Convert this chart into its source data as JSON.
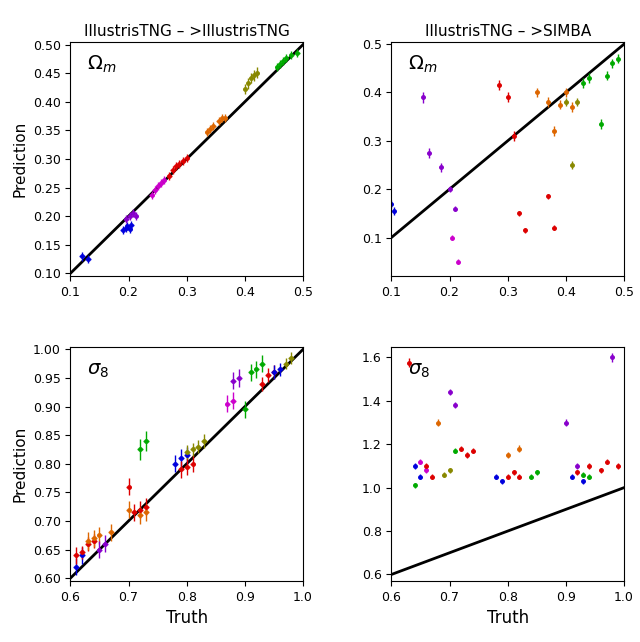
{
  "title_left": "IllustrisTNG – >IllustrisTNG",
  "title_right": "IllustrisTNG – >SIMBA",
  "xlabel": "Truth",
  "ylabel": "Prediction",
  "panel_tl": {
    "label_base": "\\Omega",
    "label_sub": "m",
    "xlim": [
      0.1,
      0.5
    ],
    "ylim": [
      0.095,
      0.505
    ],
    "xticks": [
      0.1,
      0.2,
      0.3,
      0.4,
      0.5
    ],
    "yticks": [
      0.1,
      0.15,
      0.2,
      0.25,
      0.3,
      0.35,
      0.4,
      0.45,
      0.5
    ],
    "diag": [
      0.1,
      0.5
    ],
    "points": [
      {
        "color": "#0000dd",
        "x": [
          0.12,
          0.13
        ],
        "y": [
          0.13,
          0.125
        ],
        "xerr": [
          0.005,
          0.005
        ],
        "yerr": [
          0.008,
          0.007
        ]
      },
      {
        "color": "#0000dd",
        "x": [
          0.19,
          0.195,
          0.198,
          0.202,
          0.205
        ],
        "y": [
          0.175,
          0.18,
          0.183,
          0.177,
          0.185
        ],
        "xerr": [
          0.004,
          0.004,
          0.004,
          0.004,
          0.004
        ],
        "yerr": [
          0.007,
          0.007,
          0.007,
          0.007,
          0.007
        ]
      },
      {
        "color": "#8800cc",
        "x": [
          0.196,
          0.202,
          0.207,
          0.212
        ],
        "y": [
          0.195,
          0.2,
          0.205,
          0.2
        ],
        "xerr": [
          0.004,
          0.004,
          0.004,
          0.004
        ],
        "yerr": [
          0.007,
          0.007,
          0.007,
          0.007
        ]
      },
      {
        "color": "#cc00cc",
        "x": [
          0.24,
          0.245,
          0.25,
          0.256,
          0.261
        ],
        "y": [
          0.237,
          0.245,
          0.252,
          0.258,
          0.263
        ],
        "xerr": [
          0.004,
          0.004,
          0.004,
          0.004,
          0.004
        ],
        "yerr": [
          0.007,
          0.007,
          0.007,
          0.007,
          0.007
        ]
      },
      {
        "color": "#dd0000",
        "x": [
          0.27,
          0.276,
          0.281,
          0.287,
          0.293,
          0.3
        ],
        "y": [
          0.271,
          0.28,
          0.287,
          0.292,
          0.296,
          0.301
        ],
        "xerr": [
          0.004,
          0.004,
          0.004,
          0.004,
          0.004,
          0.004
        ],
        "yerr": [
          0.007,
          0.007,
          0.007,
          0.007,
          0.007,
          0.007
        ]
      },
      {
        "color": "#dd6600",
        "x": [
          0.335,
          0.34,
          0.346,
          0.355,
          0.361,
          0.366
        ],
        "y": [
          0.347,
          0.352,
          0.357,
          0.366,
          0.371,
          0.372
        ],
        "xerr": [
          0.004,
          0.004,
          0.004,
          0.004,
          0.004,
          0.004
        ],
        "yerr": [
          0.007,
          0.007,
          0.007,
          0.007,
          0.007,
          0.007
        ]
      },
      {
        "color": "#888800",
        "x": [
          0.4,
          0.406,
          0.411,
          0.416,
          0.421
        ],
        "y": [
          0.422,
          0.432,
          0.441,
          0.446,
          0.451
        ],
        "xerr": [
          0.004,
          0.004,
          0.004,
          0.004,
          0.004
        ],
        "yerr": [
          0.009,
          0.009,
          0.009,
          0.009,
          0.009
        ]
      },
      {
        "color": "#00aa00",
        "x": [
          0.455,
          0.461,
          0.466,
          0.471,
          0.48,
          0.49
        ],
        "y": [
          0.461,
          0.466,
          0.471,
          0.476,
          0.481,
          0.486
        ],
        "xerr": [
          0.004,
          0.004,
          0.004,
          0.004,
          0.004,
          0.004
        ],
        "yerr": [
          0.007,
          0.007,
          0.007,
          0.007,
          0.007,
          0.007
        ]
      }
    ]
  },
  "panel_tr": {
    "label_base": "\\Omega",
    "label_sub": "m",
    "xlim": [
      0.1,
      0.5
    ],
    "ylim": [
      0.02,
      0.505
    ],
    "xticks": [
      0.1,
      0.2,
      0.3,
      0.4,
      0.5
    ],
    "yticks": [
      0.1,
      0.2,
      0.3,
      0.4,
      0.5
    ],
    "diag": [
      0.1,
      0.5
    ],
    "points": [
      {
        "color": "#0000dd",
        "x": [
          0.1,
          0.105
        ],
        "y": [
          0.17,
          0.155
        ],
        "xerr": [
          0.003,
          0.003
        ],
        "yerr": [
          0.008,
          0.008
        ]
      },
      {
        "color": "#8800cc",
        "x": [
          0.155,
          0.165,
          0.185,
          0.2,
          0.21
        ],
        "y": [
          0.39,
          0.275,
          0.245,
          0.2,
          0.16
        ],
        "xerr": [
          0.003,
          0.003,
          0.003,
          0.003,
          0.003
        ],
        "yerr": [
          0.012,
          0.01,
          0.01,
          0.006,
          0.006
        ]
      },
      {
        "color": "#cc00cc",
        "x": [
          0.205,
          0.215
        ],
        "y": [
          0.1,
          0.05
        ],
        "xerr": [
          0.003,
          0.003
        ],
        "yerr": [
          0.005,
          0.005
        ]
      },
      {
        "color": "#dd0000",
        "x": [
          0.285,
          0.3,
          0.31,
          0.32,
          0.33,
          0.37,
          0.38
        ],
        "y": [
          0.415,
          0.39,
          0.31,
          0.15,
          0.115,
          0.185,
          0.12
        ],
        "xerr": [
          0.003,
          0.003,
          0.003,
          0.003,
          0.003,
          0.003,
          0.003
        ],
        "yerr": [
          0.01,
          0.01,
          0.01,
          0.005,
          0.005,
          0.005,
          0.005
        ]
      },
      {
        "color": "#dd6600",
        "x": [
          0.35,
          0.37,
          0.38,
          0.39,
          0.4,
          0.41
        ],
        "y": [
          0.4,
          0.38,
          0.32,
          0.375,
          0.4,
          0.37
        ],
        "xerr": [
          0.003,
          0.003,
          0.003,
          0.003,
          0.003,
          0.003
        ],
        "yerr": [
          0.01,
          0.01,
          0.01,
          0.01,
          0.01,
          0.01
        ]
      },
      {
        "color": "#888800",
        "x": [
          0.4,
          0.41,
          0.42
        ],
        "y": [
          0.38,
          0.25,
          0.38
        ],
        "xerr": [
          0.003,
          0.003,
          0.003
        ],
        "yerr": [
          0.008,
          0.008,
          0.008
        ]
      },
      {
        "color": "#00aa00",
        "x": [
          0.43,
          0.44,
          0.46,
          0.47,
          0.48,
          0.49
        ],
        "y": [
          0.42,
          0.43,
          0.335,
          0.435,
          0.46,
          0.47
        ],
        "xerr": [
          0.003,
          0.003,
          0.003,
          0.003,
          0.003,
          0.003
        ],
        "yerr": [
          0.01,
          0.01,
          0.01,
          0.01,
          0.01,
          0.01
        ]
      }
    ]
  },
  "panel_bl": {
    "label_base": "\\sigma",
    "label_sub": "8",
    "xlim": [
      0.6,
      1.0
    ],
    "ylim": [
      0.595,
      1.005
    ],
    "xticks": [
      0.6,
      0.7,
      0.8,
      0.9,
      1.0
    ],
    "yticks": [
      0.6,
      0.65,
      0.7,
      0.75,
      0.8,
      0.85,
      0.9,
      0.95,
      1.0
    ],
    "diag": [
      0.6,
      1.0
    ],
    "points": [
      {
        "color": "#0000dd",
        "x": [
          0.61,
          0.62
        ],
        "y": [
          0.62,
          0.64
        ],
        "xerr": [
          0.005,
          0.005
        ],
        "yerr": [
          0.015,
          0.015
        ]
      },
      {
        "color": "#dd0000",
        "x": [
          0.61,
          0.62,
          0.63,
          0.64
        ],
        "y": [
          0.64,
          0.645,
          0.66,
          0.665
        ],
        "xerr": [
          0.005,
          0.005,
          0.005,
          0.005
        ],
        "yerr": [
          0.015,
          0.012,
          0.012,
          0.012
        ]
      },
      {
        "color": "#dd6600",
        "x": [
          0.63,
          0.64,
          0.65,
          0.67
        ],
        "y": [
          0.665,
          0.67,
          0.675,
          0.68
        ],
        "xerr": [
          0.005,
          0.005,
          0.005,
          0.005
        ],
        "yerr": [
          0.015,
          0.015,
          0.015,
          0.015
        ]
      },
      {
        "color": "#8800cc",
        "x": [
          0.65,
          0.66
        ],
        "y": [
          0.65,
          0.66
        ],
        "xerr": [
          0.005,
          0.005
        ],
        "yerr": [
          0.015,
          0.015
        ]
      },
      {
        "color": "#dd0000",
        "x": [
          0.7,
          0.71,
          0.72,
          0.73
        ],
        "y": [
          0.76,
          0.715,
          0.72,
          0.725
        ],
        "xerr": [
          0.005,
          0.005,
          0.005,
          0.005
        ],
        "yerr": [
          0.015,
          0.015,
          0.015,
          0.015
        ]
      },
      {
        "color": "#dd6600",
        "x": [
          0.7,
          0.72,
          0.73
        ],
        "y": [
          0.72,
          0.71,
          0.715
        ],
        "xerr": [
          0.005,
          0.005,
          0.005
        ],
        "yerr": [
          0.015,
          0.015,
          0.015
        ]
      },
      {
        "color": "#00aa00",
        "x": [
          0.72,
          0.73
        ],
        "y": [
          0.825,
          0.84
        ],
        "xerr": [
          0.005,
          0.005
        ],
        "yerr": [
          0.018,
          0.018
        ]
      },
      {
        "color": "#0000dd",
        "x": [
          0.78,
          0.79,
          0.8
        ],
        "y": [
          0.8,
          0.81,
          0.815
        ],
        "xerr": [
          0.005,
          0.005,
          0.005
        ],
        "yerr": [
          0.015,
          0.015,
          0.015
        ]
      },
      {
        "color": "#dd0000",
        "x": [
          0.79,
          0.8,
          0.81
        ],
        "y": [
          0.79,
          0.795,
          0.8
        ],
        "xerr": [
          0.005,
          0.005,
          0.005
        ],
        "yerr": [
          0.015,
          0.015,
          0.015
        ]
      },
      {
        "color": "#888800",
        "x": [
          0.8,
          0.81,
          0.82,
          0.83
        ],
        "y": [
          0.82,
          0.825,
          0.83,
          0.84
        ],
        "xerr": [
          0.005,
          0.005,
          0.005,
          0.005
        ],
        "yerr": [
          0.012,
          0.012,
          0.012,
          0.012
        ]
      },
      {
        "color": "#cc00cc",
        "x": [
          0.87,
          0.88
        ],
        "y": [
          0.905,
          0.91
        ],
        "xerr": [
          0.005,
          0.005
        ],
        "yerr": [
          0.015,
          0.015
        ]
      },
      {
        "color": "#8800cc",
        "x": [
          0.88,
          0.89
        ],
        "y": [
          0.945,
          0.95
        ],
        "xerr": [
          0.005,
          0.005
        ],
        "yerr": [
          0.015,
          0.015
        ]
      },
      {
        "color": "#00aa00",
        "x": [
          0.9,
          0.91,
          0.92,
          0.93
        ],
        "y": [
          0.895,
          0.96,
          0.965,
          0.975
        ],
        "xerr": [
          0.005,
          0.005,
          0.005,
          0.005
        ],
        "yerr": [
          0.015,
          0.015,
          0.015,
          0.015
        ]
      },
      {
        "color": "#dd0000",
        "x": [
          0.93,
          0.94,
          0.95
        ],
        "y": [
          0.94,
          0.955,
          0.96
        ],
        "xerr": [
          0.005,
          0.005,
          0.005
        ],
        "yerr": [
          0.012,
          0.012,
          0.012
        ]
      },
      {
        "color": "#0000dd",
        "x": [
          0.95,
          0.96
        ],
        "y": [
          0.96,
          0.965
        ],
        "xerr": [
          0.005,
          0.005
        ],
        "yerr": [
          0.012,
          0.012
        ]
      },
      {
        "color": "#888800",
        "x": [
          0.97,
          0.98
        ],
        "y": [
          0.975,
          0.985
        ],
        "xerr": [
          0.005,
          0.005
        ],
        "yerr": [
          0.01,
          0.01
        ]
      }
    ]
  },
  "panel_br": {
    "label_base": "\\sigma",
    "label_sub": "8",
    "xlim": [
      0.6,
      1.0
    ],
    "ylim": [
      0.57,
      1.65
    ],
    "xticks": [
      0.6,
      0.7,
      0.8,
      0.9,
      1.0
    ],
    "yticks": [
      0.6,
      0.8,
      1.0,
      1.2,
      1.4,
      1.6
    ],
    "diag": [
      0.6,
      1.0
    ],
    "points": [
      {
        "color": "#dd0000",
        "x": [
          0.63
        ],
        "y": [
          1.575
        ],
        "xerr": [
          0.003
        ],
        "yerr": [
          0.02
        ]
      },
      {
        "color": "#0000dd",
        "x": [
          0.64,
          0.65
        ],
        "y": [
          1.1,
          1.05
        ],
        "xerr": [
          0.003,
          0.003
        ],
        "yerr": [
          0.012,
          0.012
        ]
      },
      {
        "color": "#00aa00",
        "x": [
          0.64
        ],
        "y": [
          1.01
        ],
        "xerr": [
          0.003
        ],
        "yerr": [
          0.012
        ]
      },
      {
        "color": "#cc00cc",
        "x": [
          0.65,
          0.66
        ],
        "y": [
          1.12,
          1.08
        ],
        "xerr": [
          0.003,
          0.003
        ],
        "yerr": [
          0.012,
          0.012
        ]
      },
      {
        "color": "#dd0000",
        "x": [
          0.66,
          0.67
        ],
        "y": [
          1.1,
          1.05
        ],
        "xerr": [
          0.003,
          0.003
        ],
        "yerr": [
          0.012,
          0.012
        ]
      },
      {
        "color": "#dd6600",
        "x": [
          0.68
        ],
        "y": [
          1.3
        ],
        "xerr": [
          0.003
        ],
        "yerr": [
          0.015
        ]
      },
      {
        "color": "#8800cc",
        "x": [
          0.7,
          0.71
        ],
        "y": [
          1.44,
          1.38
        ],
        "xerr": [
          0.003,
          0.003
        ],
        "yerr": [
          0.015,
          0.015
        ]
      },
      {
        "color": "#888800",
        "x": [
          0.69,
          0.7
        ],
        "y": [
          1.06,
          1.08
        ],
        "xerr": [
          0.003,
          0.003
        ],
        "yerr": [
          0.012,
          0.012
        ]
      },
      {
        "color": "#dd0000",
        "x": [
          0.72,
          0.73,
          0.74
        ],
        "y": [
          1.18,
          1.15,
          1.17
        ],
        "xerr": [
          0.003,
          0.003,
          0.003
        ],
        "yerr": [
          0.012,
          0.012,
          0.012
        ]
      },
      {
        "color": "#00aa00",
        "x": [
          0.71
        ],
        "y": [
          1.17
        ],
        "xerr": [
          0.003
        ],
        "yerr": [
          0.012
        ]
      },
      {
        "color": "#0000dd",
        "x": [
          0.78,
          0.79
        ],
        "y": [
          1.05,
          1.03
        ],
        "xerr": [
          0.003,
          0.003
        ],
        "yerr": [
          0.012,
          0.012
        ]
      },
      {
        "color": "#dd0000",
        "x": [
          0.8,
          0.81,
          0.82
        ],
        "y": [
          1.05,
          1.07,
          1.05
        ],
        "xerr": [
          0.003,
          0.003,
          0.003
        ],
        "yerr": [
          0.012,
          0.012,
          0.012
        ]
      },
      {
        "color": "#dd6600",
        "x": [
          0.8,
          0.82
        ],
        "y": [
          1.15,
          1.18
        ],
        "xerr": [
          0.003,
          0.003
        ],
        "yerr": [
          0.015,
          0.015
        ]
      },
      {
        "color": "#00aa00",
        "x": [
          0.84,
          0.85
        ],
        "y": [
          1.05,
          1.07
        ],
        "xerr": [
          0.003,
          0.003
        ],
        "yerr": [
          0.012,
          0.012
        ]
      },
      {
        "color": "#8800cc",
        "x": [
          0.9,
          0.92
        ],
        "y": [
          1.3,
          1.1
        ],
        "xerr": [
          0.003,
          0.003
        ],
        "yerr": [
          0.015,
          0.015
        ]
      },
      {
        "color": "#0000dd",
        "x": [
          0.91,
          0.93
        ],
        "y": [
          1.05,
          1.03
        ],
        "xerr": [
          0.003,
          0.003
        ],
        "yerr": [
          0.012,
          0.012
        ]
      },
      {
        "color": "#dd0000",
        "x": [
          0.92,
          0.94,
          0.96
        ],
        "y": [
          1.07,
          1.1,
          1.08
        ],
        "xerr": [
          0.003,
          0.003,
          0.003
        ],
        "yerr": [
          0.012,
          0.012,
          0.012
        ]
      },
      {
        "color": "#00aa00",
        "x": [
          0.93,
          0.94
        ],
        "y": [
          1.06,
          1.05
        ],
        "xerr": [
          0.003,
          0.003
        ],
        "yerr": [
          0.012,
          0.012
        ]
      },
      {
        "color": "#8800cc",
        "x": [
          0.98
        ],
        "y": [
          1.6
        ],
        "xerr": [
          0.003
        ],
        "yerr": [
          0.02
        ]
      },
      {
        "color": "#dd0000",
        "x": [
          0.97,
          0.99
        ],
        "y": [
          1.12,
          1.1
        ],
        "xerr": [
          0.003,
          0.003
        ],
        "yerr": [
          0.012,
          0.012
        ]
      }
    ]
  }
}
